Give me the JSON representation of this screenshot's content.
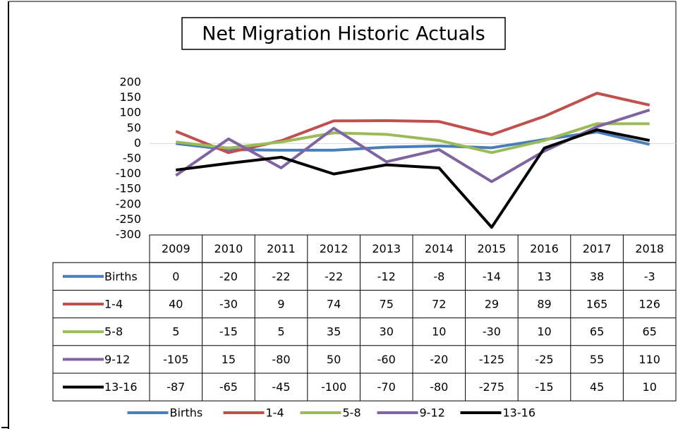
{
  "chart_data": {
    "type": "line",
    "title": "Net Migration Historic Actuals",
    "categories": [
      "2009",
      "2010",
      "2011",
      "2012",
      "2013",
      "2014",
      "2015",
      "2016",
      "2017",
      "2018"
    ],
    "series": [
      {
        "name": "Births",
        "color": "#4a7ebb",
        "values": [
          0,
          -20,
          -22,
          -22,
          -12,
          -8,
          -14,
          13,
          38,
          -3
        ]
      },
      {
        "name": "1-4",
        "color": "#c0504d",
        "values": [
          40,
          -30,
          9,
          74,
          75,
          72,
          29,
          89,
          165,
          126
        ]
      },
      {
        "name": "5-8",
        "color": "#9bbb59",
        "values": [
          5,
          -15,
          5,
          35,
          30,
          10,
          -30,
          10,
          65,
          65
        ]
      },
      {
        "name": "9-12",
        "color": "#8064a2",
        "values": [
          -105,
          15,
          -80,
          50,
          -60,
          -20,
          -125,
          -25,
          55,
          110
        ]
      },
      {
        "name": "13-16",
        "color": "#000000",
        "values": [
          -87,
          -65,
          -45,
          -100,
          -70,
          -80,
          -275,
          -15,
          45,
          10
        ]
      }
    ],
    "ylim": [
      -300,
      200
    ],
    "yticks": [
      -300,
      -250,
      -200,
      -150,
      -100,
      -50,
      0,
      50,
      100,
      150,
      200
    ]
  }
}
